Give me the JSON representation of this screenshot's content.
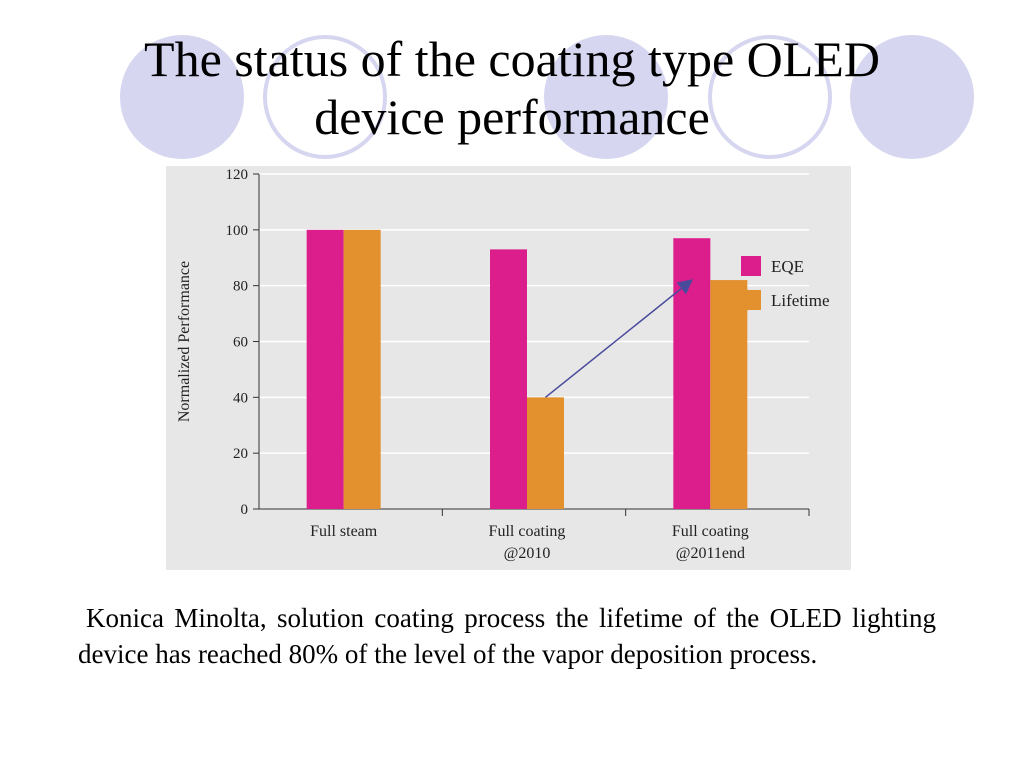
{
  "slide": {
    "title_line1": "The status of the coating type OLED",
    "title_line2": "device performance",
    "caption": "Konica Minolta, solution coating process the lifetime of the OLED lighting device has reached 80% of the level of the vapor deposition process."
  },
  "colors": {
    "decoration": "#d6d6f0",
    "chart_background": "#e7e7e7",
    "eqe": "#dc1e8c",
    "lifetime": "#e3902f",
    "arrow": "#4a4a9c",
    "grid": "#ffffff"
  },
  "chart_data": {
    "type": "bar",
    "categories": [
      [
        "Full steam"
      ],
      [
        "Full coating",
        "@2010"
      ],
      [
        "Full coating",
        "@2011end"
      ]
    ],
    "series": [
      {
        "name": "EQE",
        "values": [
          100,
          93,
          97
        ]
      },
      {
        "name": "Lifetime",
        "values": [
          100,
          40,
          82
        ]
      }
    ],
    "ylabel": "Normalized Performance",
    "xlabel": "",
    "ylim": [
      0,
      120
    ],
    "yticks": [
      0,
      20,
      40,
      60,
      80,
      100,
      120
    ],
    "grid": true,
    "legend_position": "right",
    "annotation": {
      "type": "arrow",
      "from": {
        "category_index": 1,
        "series": "Lifetime"
      },
      "to": {
        "category_index": 2,
        "series": "Lifetime"
      }
    }
  }
}
